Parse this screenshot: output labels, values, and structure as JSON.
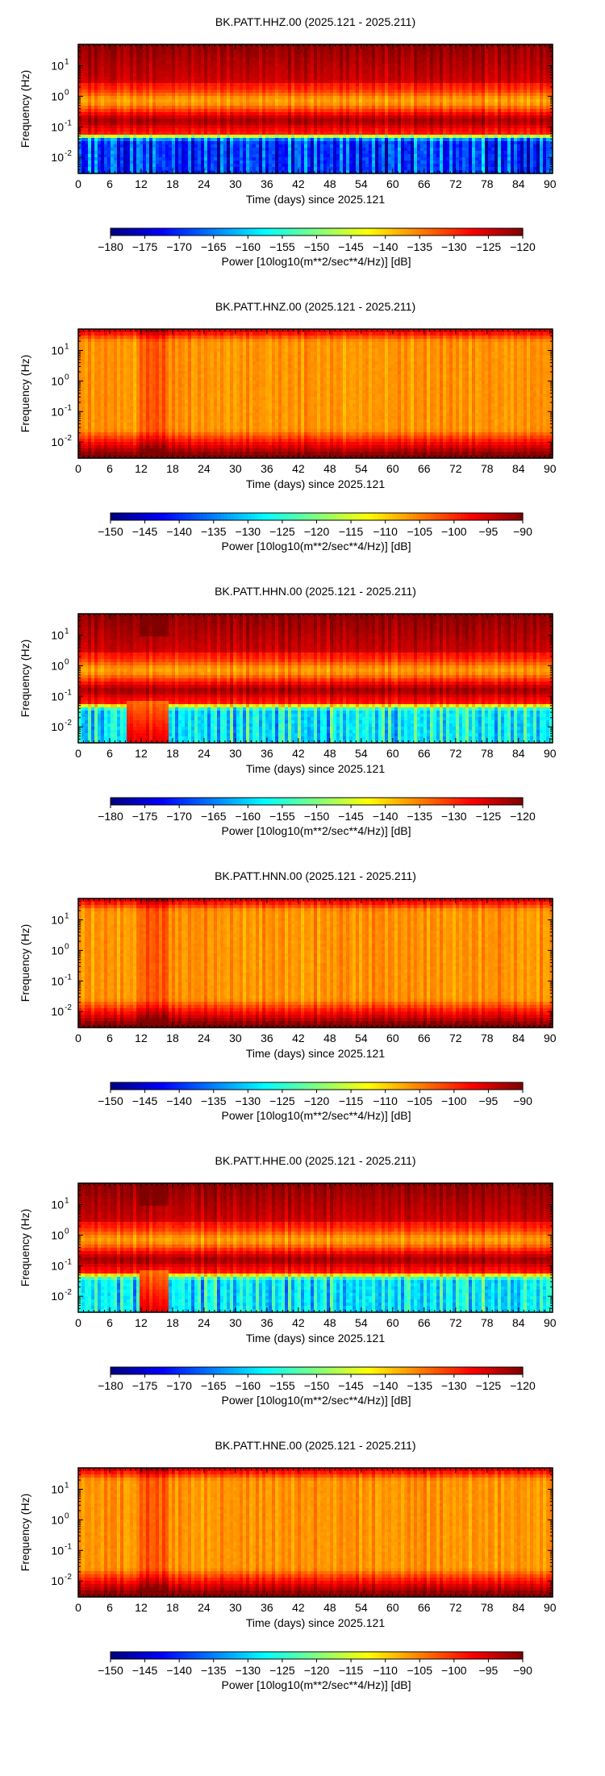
{
  "charts": [
    {
      "title": "BK.PATT.HHZ.00 (2025.121 - 2025.211)",
      "xlabel": "Time (days) since 2025.121",
      "ylabel": "Frequency (Hz)",
      "colorbar_label": "Power [10log10(m**2/sec**4/Hz)] [dB]",
      "colorbar_ticks": [
        "−180",
        "−175",
        "−170",
        "−165",
        "−160",
        "−155",
        "−150",
        "−145",
        "−140",
        "−135",
        "−130",
        "−125",
        "−120"
      ]
    },
    {
      "title": "BK.PATT.HNZ.00 (2025.121 - 2025.211)",
      "xlabel": "Time (days) since 2025.121",
      "ylabel": "Frequency (Hz)",
      "colorbar_label": "Power [10log10(m**2/sec**4/Hz)] [dB]",
      "colorbar_ticks": [
        "−150",
        "−145",
        "−140",
        "−135",
        "−130",
        "−125",
        "−120",
        "−115",
        "−110",
        "−105",
        "−100",
        "−95",
        "−90"
      ]
    },
    {
      "title": "BK.PATT.HHN.00 (2025.121 - 2025.211)",
      "xlabel": "Time (days) since 2025.121",
      "ylabel": "Frequency (Hz)",
      "colorbar_label": "Power [10log10(m**2/sec**4/Hz)] [dB]",
      "colorbar_ticks": [
        "−180",
        "−175",
        "−170",
        "−165",
        "−160",
        "−155",
        "−150",
        "−145",
        "−140",
        "−135",
        "−130",
        "−125",
        "−120"
      ]
    },
    {
      "title": "BK.PATT.HNN.00 (2025.121 - 2025.211)",
      "xlabel": "Time (days) since 2025.121",
      "ylabel": "Frequency (Hz)",
      "colorbar_label": "Power [10log10(m**2/sec**4/Hz)] [dB]",
      "colorbar_ticks": [
        "−150",
        "−145",
        "−140",
        "−135",
        "−130",
        "−125",
        "−120",
        "−115",
        "−110",
        "−105",
        "−100",
        "−95",
        "−90"
      ]
    },
    {
      "title": "BK.PATT.HHE.00 (2025.121 - 2025.211)",
      "xlabel": "Time (days) since 2025.121",
      "ylabel": "Frequency (Hz)",
      "colorbar_label": "Power [10log10(m**2/sec**4/Hz)] [dB]",
      "colorbar_ticks": [
        "−180",
        "−175",
        "−170",
        "−165",
        "−160",
        "−155",
        "−150",
        "−145",
        "−140",
        "−135",
        "−130",
        "−125",
        "−120"
      ]
    },
    {
      "title": "BK.PATT.HNE.00 (2025.121 - 2025.211)",
      "xlabel": "Time (days) since 2025.121",
      "ylabel": "Frequency (Hz)",
      "colorbar_label": "Power [10log10(m**2/sec**4/Hz)] [dB]",
      "colorbar_ticks": [
        "−150",
        "−145",
        "−140",
        "−135",
        "−130",
        "−125",
        "−120",
        "−115",
        "−110",
        "−105",
        "−100",
        "−95",
        "−90"
      ]
    }
  ],
  "chart_data": [
    {
      "type": "heatmap",
      "channel": "HHZ",
      "x_ticks": [
        "0",
        "6",
        "12",
        "18",
        "24",
        "30",
        "36",
        "42",
        "48",
        "54",
        "60",
        "66",
        "72",
        "78",
        "84",
        "90"
      ],
      "xlim": [
        0,
        90.5
      ],
      "yscale": "log",
      "y_ticks": [
        "10",
        "10",
        "10",
        "10"
      ],
      "y_tick_exponents": [
        "1",
        "0",
        "-1",
        "-2"
      ],
      "ylim": [
        0.003,
        50
      ],
      "colormap": "jet",
      "clim": [
        -180,
        -120
      ],
      "profile": "broadband",
      "low_freq_gap_days": null
    },
    {
      "type": "heatmap",
      "channel": "HNZ",
      "x_ticks": [
        "0",
        "6",
        "12",
        "18",
        "24",
        "30",
        "36",
        "42",
        "48",
        "54",
        "60",
        "66",
        "72",
        "78",
        "84",
        "90"
      ],
      "xlim": [
        0,
        90.5
      ],
      "yscale": "log",
      "y_ticks": [
        "10",
        "10",
        "10",
        "10"
      ],
      "y_tick_exponents": [
        "1",
        "0",
        "-1",
        "-2"
      ],
      "ylim": [
        0.003,
        50
      ],
      "colormap": "jet",
      "clim": [
        -150,
        -90
      ],
      "profile": "strong-motion"
    },
    {
      "type": "heatmap",
      "channel": "HHN",
      "x_ticks": [
        "0",
        "6",
        "12",
        "18",
        "24",
        "30",
        "36",
        "42",
        "48",
        "54",
        "60",
        "66",
        "72",
        "78",
        "84",
        "90"
      ],
      "xlim": [
        0,
        90.5
      ],
      "yscale": "log",
      "y_ticks": [
        "10",
        "10",
        "10",
        "10"
      ],
      "y_tick_exponents": [
        "1",
        "0",
        "-1",
        "-2"
      ],
      "ylim": [
        0.003,
        50
      ],
      "colormap": "jet",
      "clim": [
        -180,
        -120
      ],
      "profile": "broadband-horizontal",
      "low_freq_gap_days": [
        9,
        17
      ]
    },
    {
      "type": "heatmap",
      "channel": "HNN",
      "x_ticks": [
        "0",
        "6",
        "12",
        "18",
        "24",
        "30",
        "36",
        "42",
        "48",
        "54",
        "60",
        "66",
        "72",
        "78",
        "84",
        "90"
      ],
      "xlim": [
        0,
        90.5
      ],
      "yscale": "log",
      "y_ticks": [
        "10",
        "10",
        "10",
        "10"
      ],
      "y_tick_exponents": [
        "1",
        "0",
        "-1",
        "-2"
      ],
      "ylim": [
        0.003,
        50
      ],
      "colormap": "jet",
      "clim": [
        -150,
        -90
      ],
      "profile": "strong-motion"
    },
    {
      "type": "heatmap",
      "channel": "HHE",
      "x_ticks": [
        "0",
        "6",
        "12",
        "18",
        "24",
        "30",
        "36",
        "42",
        "48",
        "54",
        "60",
        "66",
        "72",
        "78",
        "84",
        "90"
      ],
      "xlim": [
        0,
        90.5
      ],
      "yscale": "log",
      "y_ticks": [
        "10",
        "10",
        "10",
        "10"
      ],
      "y_tick_exponents": [
        "1",
        "0",
        "-1",
        "-2"
      ],
      "ylim": [
        0.003,
        50
      ],
      "colormap": "jet",
      "clim": [
        -180,
        -120
      ],
      "profile": "broadband-horizontal",
      "low_freq_gap_days": [
        12,
        17
      ]
    },
    {
      "type": "heatmap",
      "channel": "HNE",
      "x_ticks": [
        "0",
        "6",
        "12",
        "18",
        "24",
        "30",
        "36",
        "42",
        "48",
        "54",
        "60",
        "66",
        "72",
        "78",
        "84",
        "90"
      ],
      "xlim": [
        0,
        90.5
      ],
      "yscale": "log",
      "y_ticks": [
        "10",
        "10",
        "10",
        "10"
      ],
      "y_tick_exponents": [
        "1",
        "0",
        "-1",
        "-2"
      ],
      "ylim": [
        0.003,
        50
      ],
      "colormap": "jet",
      "clim": [
        -150,
        -90
      ],
      "profile": "strong-motion"
    }
  ]
}
